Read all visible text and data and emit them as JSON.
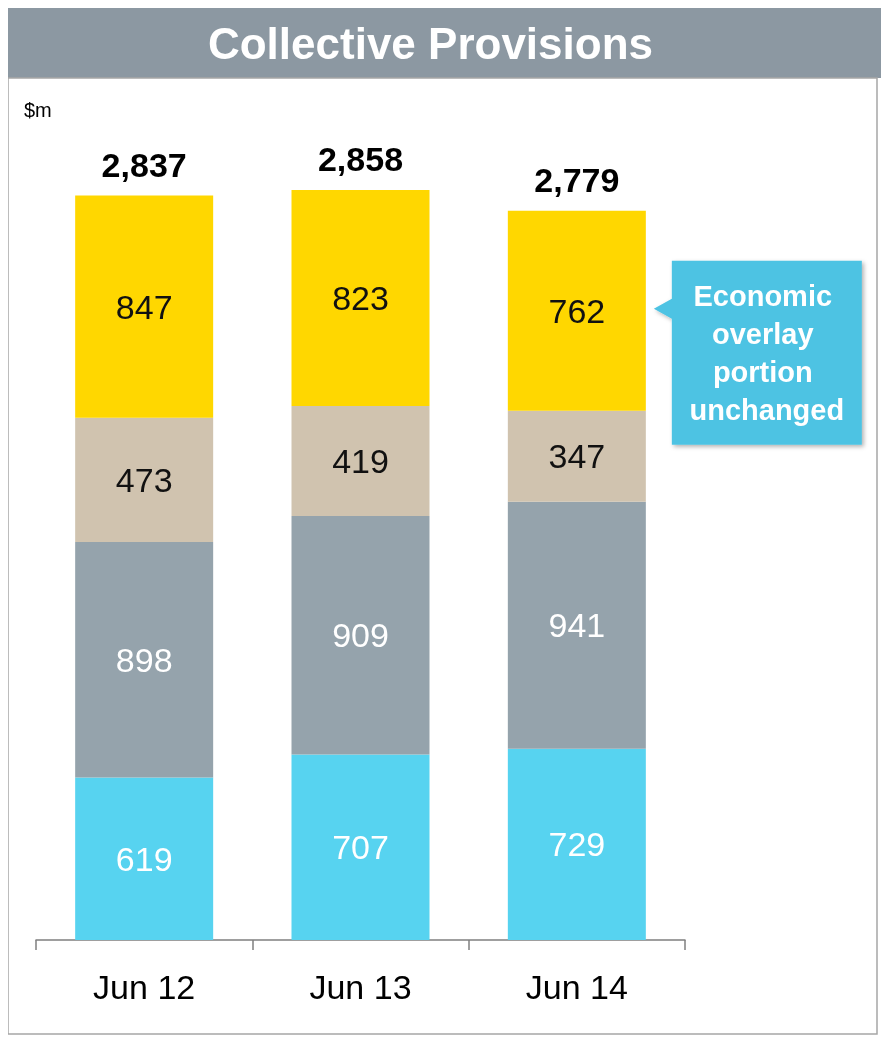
{
  "chart_data": {
    "type": "bar",
    "title": "Collective Provisions",
    "ylabel": "$m",
    "stacked": true,
    "data_labels": true,
    "categories": [
      "Jun 12",
      "Jun 13",
      "Jun 14"
    ],
    "series": [
      {
        "color": "#57d3f0",
        "values": [
          619,
          707,
          729
        ]
      },
      {
        "color": "#95a3ac",
        "values": [
          898,
          909,
          941
        ]
      },
      {
        "color": "#d0c3af",
        "values": [
          473,
          419,
          347
        ]
      },
      {
        "color": "#ffd700",
        "values": [
          847,
          823,
          762
        ]
      }
    ],
    "totals": [
      "2,837",
      "2,858",
      "2,779"
    ],
    "annotations": [
      "Economic overlay portion unchanged"
    ]
  }
}
